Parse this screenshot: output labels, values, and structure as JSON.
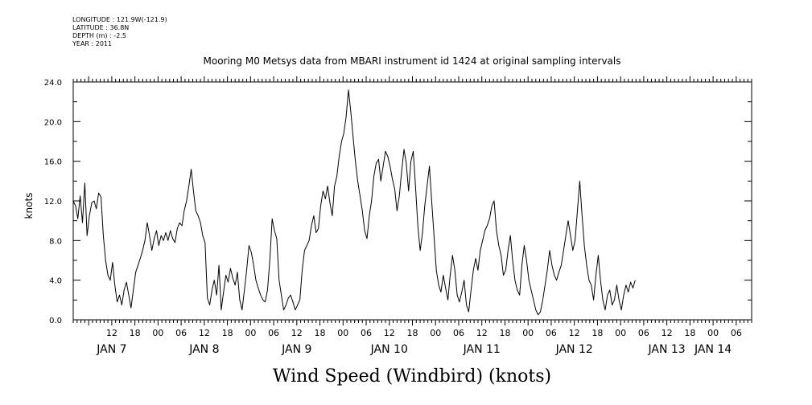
{
  "header": {
    "lines": [
      "LONGITUDE : 121.9W(-121.9)",
      "LATITUDE : 36.8N",
      "DEPTH (m) : -2.5",
      "YEAR : 2011"
    ]
  },
  "chart_data": {
    "type": "line",
    "title": "Mooring M0 Metsys data from MBARI instrument id 1424 at original sampling intervals",
    "xlabel": "Wind Speed (Windbird) (knots)",
    "ylabel": "knots",
    "ylim": [
      0,
      24
    ],
    "yticks": [
      "0.0",
      "4.0",
      "8.0",
      "12.0",
      "16.0",
      "20.0",
      "24.0"
    ],
    "x_hour_ticks": [
      {
        "t": 12,
        "label": "12"
      },
      {
        "t": 18,
        "label": "18"
      },
      {
        "t": 24,
        "label": "00"
      },
      {
        "t": 30,
        "label": "06"
      },
      {
        "t": 36,
        "label": "12"
      },
      {
        "t": 42,
        "label": "18"
      },
      {
        "t": 48,
        "label": "00"
      },
      {
        "t": 54,
        "label": "06"
      },
      {
        "t": 60,
        "label": "12"
      },
      {
        "t": 66,
        "label": "18"
      },
      {
        "t": 72,
        "label": "00"
      },
      {
        "t": 78,
        "label": "06"
      },
      {
        "t": 84,
        "label": "12"
      },
      {
        "t": 90,
        "label": "18"
      },
      {
        "t": 96,
        "label": "00"
      },
      {
        "t": 102,
        "label": "06"
      },
      {
        "t": 108,
        "label": "12"
      },
      {
        "t": 114,
        "label": "18"
      },
      {
        "t": 120,
        "label": "00"
      },
      {
        "t": 126,
        "label": "06"
      },
      {
        "t": 132,
        "label": "12"
      },
      {
        "t": 138,
        "label": "18"
      },
      {
        "t": 144,
        "label": "00"
      },
      {
        "t": 150,
        "label": "06"
      },
      {
        "t": 156,
        "label": "12"
      },
      {
        "t": 162,
        "label": "18"
      },
      {
        "t": 168,
        "label": "00"
      },
      {
        "t": 174,
        "label": "06"
      }
    ],
    "x_day_labels": [
      {
        "t": 12,
        "label": "JAN  7"
      },
      {
        "t": 36,
        "label": "JAN  8"
      },
      {
        "t": 60,
        "label": "JAN  9"
      },
      {
        "t": 84,
        "label": "JAN 10"
      },
      {
        "t": 108,
        "label": "JAN 11"
      },
      {
        "t": 132,
        "label": "JAN 12"
      },
      {
        "t": 156,
        "label": "JAN 13"
      },
      {
        "t": 168,
        "label": "JAN 14"
      }
    ],
    "xlim_hours_from_jan7": [
      2,
      178
    ],
    "grid": false,
    "series": [
      {
        "values": [
          [
            2.0,
            12.0
          ],
          [
            2.6,
            11.5
          ],
          [
            3.2,
            10.2
          ],
          [
            3.8,
            12.5
          ],
          [
            4.4,
            9.8
          ],
          [
            5.0,
            13.8
          ],
          [
            5.6,
            8.5
          ],
          [
            6.2,
            10.5
          ],
          [
            6.8,
            11.8
          ],
          [
            7.4,
            12.0
          ],
          [
            8.0,
            11.2
          ],
          [
            8.6,
            12.8
          ],
          [
            9.2,
            12.4
          ],
          [
            9.8,
            8.5
          ],
          [
            10.4,
            6.0
          ],
          [
            11.0,
            4.5
          ],
          [
            11.6,
            4.0
          ],
          [
            12.2,
            5.8
          ],
          [
            12.8,
            3.5
          ],
          [
            13.4,
            1.8
          ],
          [
            14.0,
            2.5
          ],
          [
            14.6,
            1.5
          ],
          [
            15.2,
            3.0
          ],
          [
            15.8,
            3.8
          ],
          [
            16.4,
            2.5
          ],
          [
            17.0,
            1.2
          ],
          [
            17.6,
            3.0
          ],
          [
            18.2,
            4.8
          ],
          [
            18.8,
            5.5
          ],
          [
            19.4,
            6.2
          ],
          [
            20.0,
            7.0
          ],
          [
            20.6,
            8.0
          ],
          [
            21.2,
            9.8
          ],
          [
            21.8,
            8.5
          ],
          [
            22.4,
            7.0
          ],
          [
            23.0,
            8.2
          ],
          [
            23.6,
            9.0
          ],
          [
            24.2,
            7.5
          ],
          [
            24.8,
            8.5
          ],
          [
            25.4,
            8.0
          ],
          [
            26.0,
            8.8
          ],
          [
            26.6,
            8.0
          ],
          [
            27.2,
            9.0
          ],
          [
            27.8,
            8.2
          ],
          [
            28.4,
            7.8
          ],
          [
            29.0,
            9.2
          ],
          [
            29.6,
            9.8
          ],
          [
            30.2,
            9.5
          ],
          [
            30.8,
            11.0
          ],
          [
            31.4,
            12.0
          ],
          [
            32.0,
            13.5
          ],
          [
            32.6,
            15.2
          ],
          [
            33.2,
            13.0
          ],
          [
            33.8,
            11.0
          ],
          [
            34.4,
            10.5
          ],
          [
            35.0,
            9.8
          ],
          [
            35.6,
            8.5
          ],
          [
            36.2,
            7.8
          ],
          [
            36.8,
            2.2
          ],
          [
            37.4,
            1.5
          ],
          [
            38.0,
            3.0
          ],
          [
            38.6,
            4.0
          ],
          [
            39.2,
            2.5
          ],
          [
            39.8,
            5.5
          ],
          [
            40.4,
            1.0
          ],
          [
            41.0,
            2.8
          ],
          [
            41.6,
            4.5
          ],
          [
            42.2,
            3.8
          ],
          [
            42.8,
            5.2
          ],
          [
            43.4,
            4.2
          ],
          [
            44.0,
            3.5
          ],
          [
            44.6,
            4.8
          ],
          [
            45.2,
            2.0
          ],
          [
            45.8,
            1.0
          ],
          [
            46.4,
            3.0
          ],
          [
            47.0,
            5.0
          ],
          [
            47.6,
            7.5
          ],
          [
            48.2,
            6.8
          ],
          [
            48.8,
            5.5
          ],
          [
            49.4,
            4.0
          ],
          [
            50.0,
            3.2
          ],
          [
            50.6,
            2.5
          ],
          [
            51.2,
            2.0
          ],
          [
            51.8,
            1.8
          ],
          [
            52.4,
            3.0
          ],
          [
            53.0,
            6.0
          ],
          [
            53.6,
            10.2
          ],
          [
            54.2,
            9.0
          ],
          [
            54.8,
            8.2
          ],
          [
            55.4,
            4.0
          ],
          [
            56.0,
            2.5
          ],
          [
            56.6,
            1.0
          ],
          [
            57.2,
            1.5
          ],
          [
            57.8,
            2.2
          ],
          [
            58.4,
            2.5
          ],
          [
            59.0,
            1.8
          ],
          [
            59.6,
            1.0
          ],
          [
            60.2,
            1.5
          ],
          [
            60.8,
            2.0
          ],
          [
            61.4,
            5.0
          ],
          [
            62.0,
            7.0
          ],
          [
            62.6,
            7.5
          ],
          [
            63.2,
            8.0
          ],
          [
            63.8,
            9.5
          ],
          [
            64.4,
            10.5
          ],
          [
            65.0,
            8.8
          ],
          [
            65.6,
            9.2
          ],
          [
            66.2,
            11.5
          ],
          [
            66.8,
            13.0
          ],
          [
            67.4,
            12.2
          ],
          [
            68.0,
            13.5
          ],
          [
            68.6,
            11.8
          ],
          [
            69.2,
            10.5
          ],
          [
            69.8,
            13.5
          ],
          [
            70.4,
            14.5
          ],
          [
            71.0,
            16.5
          ],
          [
            71.6,
            18.0
          ],
          [
            72.2,
            18.8
          ],
          [
            72.8,
            20.5
          ],
          [
            73.4,
            23.2
          ],
          [
            74.0,
            21.0
          ],
          [
            74.6,
            18.5
          ],
          [
            75.2,
            16.0
          ],
          [
            75.8,
            14.0
          ],
          [
            76.4,
            12.5
          ],
          [
            77.0,
            11.0
          ],
          [
            77.6,
            9.0
          ],
          [
            78.2,
            8.2
          ],
          [
            78.8,
            10.5
          ],
          [
            79.4,
            12.0
          ],
          [
            80.0,
            14.5
          ],
          [
            80.6,
            15.8
          ],
          [
            81.2,
            16.2
          ],
          [
            81.8,
            14.0
          ],
          [
            82.4,
            15.5
          ],
          [
            83.0,
            17.0
          ],
          [
            83.6,
            16.5
          ],
          [
            84.2,
            15.5
          ],
          [
            84.8,
            14.2
          ],
          [
            85.4,
            13.2
          ],
          [
            86.0,
            11.0
          ],
          [
            86.6,
            12.5
          ],
          [
            87.2,
            15.0
          ],
          [
            87.8,
            17.2
          ],
          [
            88.4,
            15.8
          ],
          [
            89.0,
            13.0
          ],
          [
            89.6,
            16.0
          ],
          [
            90.2,
            17.0
          ],
          [
            90.8,
            13.5
          ],
          [
            91.4,
            9.5
          ],
          [
            92.0,
            7.0
          ],
          [
            92.6,
            8.8
          ],
          [
            93.2,
            11.5
          ],
          [
            93.8,
            13.5
          ],
          [
            94.4,
            15.5
          ],
          [
            95.0,
            12.0
          ],
          [
            95.6,
            8.5
          ],
          [
            96.2,
            5.0
          ],
          [
            96.8,
            3.5
          ],
          [
            97.4,
            2.8
          ],
          [
            98.0,
            4.5
          ],
          [
            98.6,
            3.2
          ],
          [
            99.2,
            2.0
          ],
          [
            99.8,
            4.5
          ],
          [
            100.4,
            6.5
          ],
          [
            101.0,
            5.0
          ],
          [
            101.6,
            2.5
          ],
          [
            102.2,
            1.8
          ],
          [
            102.8,
            2.8
          ],
          [
            103.4,
            4.0
          ],
          [
            104.0,
            1.5
          ],
          [
            104.6,
            0.8
          ],
          [
            105.2,
            3.0
          ],
          [
            105.8,
            5.0
          ],
          [
            106.4,
            6.2
          ],
          [
            107.0,
            5.0
          ],
          [
            107.6,
            7.0
          ],
          [
            108.2,
            8.0
          ],
          [
            108.8,
            9.0
          ],
          [
            109.4,
            9.5
          ],
          [
            110.0,
            10.2
          ],
          [
            110.6,
            11.5
          ],
          [
            111.2,
            12.0
          ],
          [
            111.8,
            9.0
          ],
          [
            112.4,
            7.5
          ],
          [
            113.0,
            6.5
          ],
          [
            113.6,
            4.5
          ],
          [
            114.2,
            5.0
          ],
          [
            114.8,
            7.0
          ],
          [
            115.4,
            8.5
          ],
          [
            116.0,
            6.0
          ],
          [
            116.6,
            4.0
          ],
          [
            117.2,
            3.0
          ],
          [
            117.8,
            2.5
          ],
          [
            118.4,
            5.5
          ],
          [
            119.0,
            7.5
          ],
          [
            119.6,
            6.0
          ],
          [
            120.2,
            4.0
          ],
          [
            120.8,
            3.0
          ],
          [
            121.4,
            2.0
          ],
          [
            122.0,
            1.0
          ],
          [
            122.6,
            0.5
          ],
          [
            123.2,
            0.8
          ],
          [
            123.8,
            2.0
          ],
          [
            124.4,
            3.5
          ],
          [
            125.0,
            5.0
          ],
          [
            125.6,
            7.0
          ],
          [
            126.2,
            5.5
          ],
          [
            126.8,
            4.5
          ],
          [
            127.4,
            4.0
          ],
          [
            128.0,
            4.8
          ],
          [
            128.6,
            5.5
          ],
          [
            129.2,
            7.0
          ],
          [
            129.8,
            8.5
          ],
          [
            130.4,
            10.0
          ],
          [
            131.0,
            8.5
          ],
          [
            131.6,
            7.0
          ],
          [
            132.2,
            8.0
          ],
          [
            132.8,
            11.0
          ],
          [
            133.4,
            14.0
          ],
          [
            134.0,
            10.5
          ],
          [
            134.6,
            7.5
          ],
          [
            135.2,
            5.5
          ],
          [
            135.8,
            4.0
          ],
          [
            136.4,
            3.5
          ],
          [
            137.0,
            2.0
          ],
          [
            137.6,
            4.5
          ],
          [
            138.2,
            6.5
          ],
          [
            138.8,
            4.0
          ],
          [
            139.4,
            2.0
          ],
          [
            140.0,
            1.0
          ],
          [
            140.6,
            2.5
          ],
          [
            141.2,
            3.0
          ],
          [
            141.8,
            1.5
          ],
          [
            142.4,
            2.0
          ],
          [
            143.0,
            3.5
          ],
          [
            143.6,
            2.0
          ],
          [
            144.2,
            1.0
          ],
          [
            144.8,
            2.5
          ],
          [
            145.4,
            3.5
          ],
          [
            146.0,
            2.8
          ],
          [
            146.6,
            3.8
          ],
          [
            147.2,
            3.2
          ],
          [
            147.8,
            4.0
          ]
        ]
      }
    ]
  }
}
